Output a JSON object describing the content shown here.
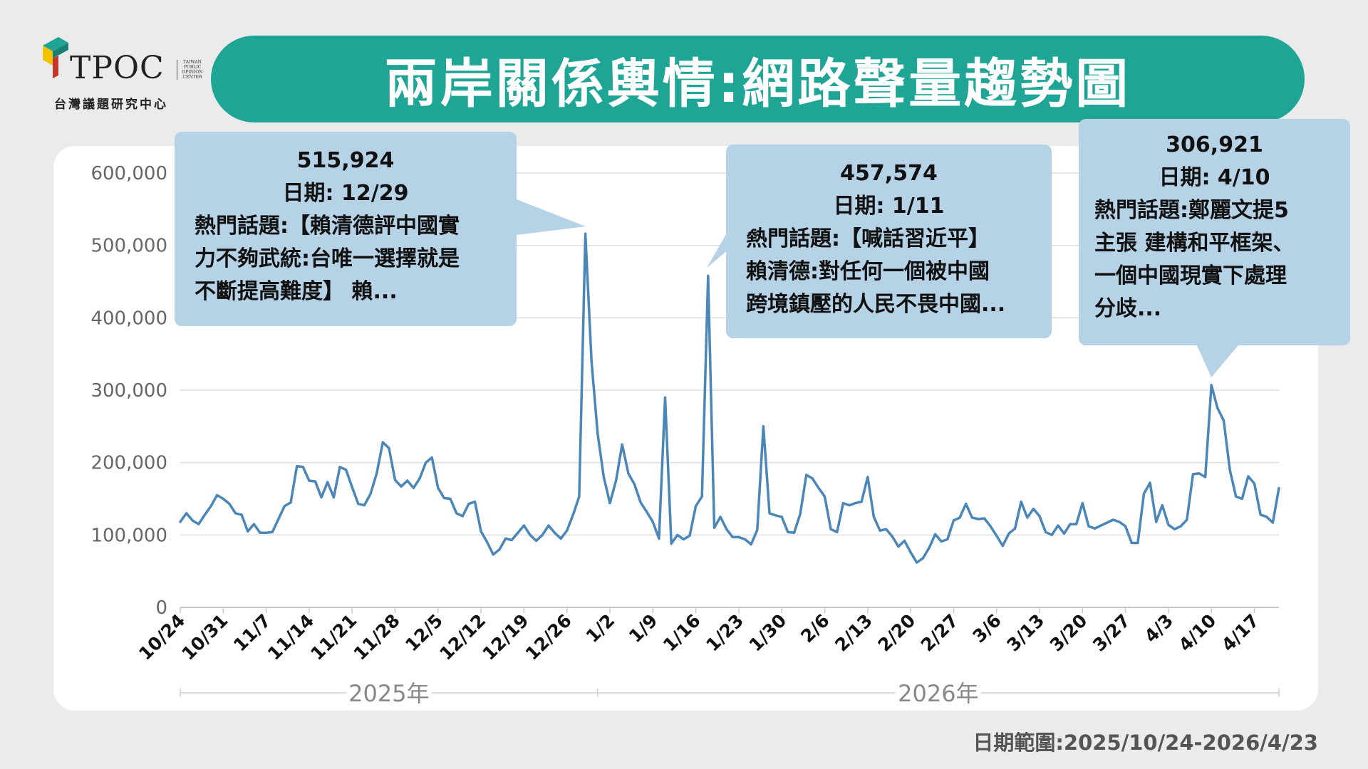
{
  "header": {
    "logo_text": "TPOC",
    "logo_side": [
      "TAIWAN",
      "PUBLIC",
      "OPINION",
      "CENTER"
    ],
    "logo_subtitle": "台灣議題研究中心",
    "title": "兩岸關係輿情:網路聲量趨勢圖"
  },
  "footer": {
    "date_range": "日期範圍:2025/10/24-2026/4/23"
  },
  "colors": {
    "title_banner": "#1ea596",
    "line": "#4a86b8",
    "callout_bg": "#b5d2e6",
    "background": "#ebebeb"
  },
  "callouts": [
    {
      "value": "515,924",
      "date": "日期: 12/29",
      "text": "熱門話題:【賴清德評中國實\n力不夠武統:台唯一選擇就是\n不斷提高難度】 賴..."
    },
    {
      "value": "457,574",
      "date": "日期: 1/11",
      "text": "熱門話題:【喊話習近平】\n賴清德:對任何一個被中國\n跨境鎮壓的人民不畏中國..."
    },
    {
      "value": "306,921",
      "date": "日期: 4/10",
      "text": "熱門話題:鄭麗文提5\n主張 建構和平框架、\n一個中國現實下處理\n分歧..."
    }
  ],
  "chart_data": {
    "type": "line",
    "title": "",
    "xlabel": "",
    "ylabel": "",
    "ylim": [
      0,
      600000
    ],
    "yticks": [
      "0",
      "100,000",
      "200,000",
      "300,000",
      "400,000",
      "500,000",
      "600,000"
    ],
    "x_tick_labels": [
      "10/24",
      "10/31",
      "11/7",
      "11/14",
      "11/21",
      "11/28",
      "12/5",
      "12/12",
      "12/19",
      "12/26",
      "1/2",
      "1/9",
      "1/16",
      "1/23",
      "1/30",
      "2/6",
      "2/13",
      "2/20",
      "2/27",
      "3/6",
      "3/13",
      "3/20",
      "3/27",
      "4/3",
      "4/10",
      "4/17"
    ],
    "year_labels": [
      "2025年",
      "2026年"
    ],
    "x_start": "2025-10-24",
    "x_end": "2026-04-23",
    "grid": "horizontal",
    "series": [
      {
        "values": [
          118000,
          130000,
          120000,
          115000,
          128000,
          140000,
          155000,
          150000,
          143000,
          130000,
          128000,
          105000,
          115000,
          103000,
          103000,
          104000,
          122000,
          140000,
          145000,
          195000,
          194000,
          175000,
          174000,
          152000,
          173000,
          152000,
          194000,
          190000,
          166000,
          143000,
          141000,
          157000,
          185000,
          228000,
          220000,
          176000,
          167000,
          175000,
          165000,
          178000,
          200000,
          207000,
          165000,
          151000,
          150000,
          130000,
          126000,
          143000,
          146000,
          105000,
          90000,
          73000,
          80000,
          95000,
          93000,
          103000,
          113000,
          100000,
          92000,
          100000,
          113000,
          103000,
          95000,
          106000,
          128000,
          153000,
          516000,
          340000,
          240000,
          180000,
          144000,
          175000,
          225000,
          185000,
          170000,
          145000,
          132000,
          118000,
          95000,
          290000,
          88000,
          100000,
          94000,
          99000,
          140000,
          153000,
          458000,
          110000,
          125000,
          108000,
          97000,
          97000,
          94000,
          87000,
          107000,
          250000,
          130000,
          127000,
          125000,
          104000,
          103000,
          129000,
          183000,
          178000,
          165000,
          153000,
          108000,
          104000,
          144000,
          141000,
          144000,
          146000,
          180000,
          125000,
          106000,
          108000,
          98000,
          84000,
          92000,
          76000,
          62000,
          68000,
          82000,
          101000,
          91000,
          94000,
          120000,
          124000,
          143000,
          124000,
          122000,
          123000,
          112000,
          99000,
          85000,
          102000,
          109000,
          146000,
          124000,
          136000,
          126000,
          104000,
          100000,
          113000,
          102000,
          115000,
          115000,
          144000,
          112000,
          109000,
          113000,
          117000,
          121000,
          118000,
          112000,
          89000,
          89000,
          157000,
          172000,
          118000,
          141000,
          114000,
          108000,
          112000,
          121000,
          184000,
          185000,
          180000,
          307000,
          275000,
          258000,
          190000,
          153000,
          150000,
          181000,
          171000,
          128000,
          125000,
          117000,
          165000
        ]
      }
    ]
  }
}
